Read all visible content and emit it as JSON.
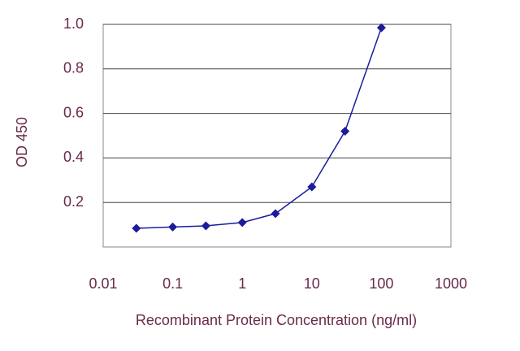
{
  "chart_data": {
    "type": "line",
    "xlabel": "Recombinant Protein Concentration  (ng/ml)",
    "ylabel": "OD 450",
    "x": [
      0.03,
      0.1,
      0.3,
      1,
      3,
      10,
      30,
      100
    ],
    "values": [
      0.084,
      0.09,
      0.095,
      0.11,
      0.15,
      0.27,
      0.52,
      0.985
    ],
    "color": "#1c1c9c",
    "xscale": "log",
    "xlim": [
      0.01,
      1000
    ],
    "xticks": [
      0.01,
      0.1,
      1,
      10,
      100,
      1000
    ],
    "ylim": [
      0,
      1
    ],
    "yticks": [
      0.2,
      0.4,
      0.6,
      0.8,
      {
        "value": 1,
        "label": "1.0"
      }
    ],
    "grid": true
  }
}
